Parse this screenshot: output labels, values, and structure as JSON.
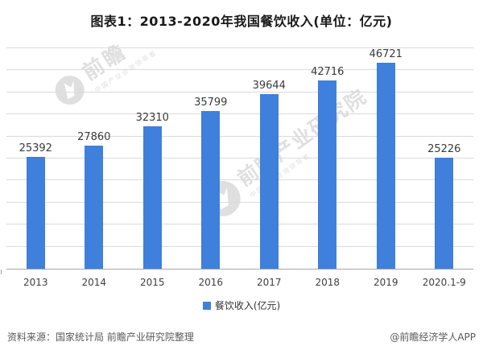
{
  "page": {
    "title": "图表1：2013-2020年我国餐饮收入(单位：亿元)"
  },
  "chart_data": {
    "type": "bar",
    "title": "图表1：2013-2020年我国餐饮收入(单位：亿元)",
    "categories": [
      "2013",
      "2014",
      "2015",
      "2016",
      "2017",
      "2018",
      "2019",
      "2020.1-9"
    ],
    "values": [
      25392,
      27860,
      32310,
      35799,
      39644,
      42716,
      46721,
      25226
    ],
    "series_name": "餐饮收入(亿元)",
    "unit": "亿元",
    "ylim": [
      0,
      50000
    ],
    "grid_step": 5000,
    "gridlines": "horizontal",
    "y_axis_labels_visible": false,
    "value_labels": true,
    "legend_position": "bottom"
  },
  "legend": {
    "items": [
      {
        "label": "餐饮收入(亿元)",
        "color": "#3E80DB"
      }
    ]
  },
  "watermarks": {
    "small": {
      "brand": "前瞻",
      "tagline": "中国产业咨询领导者"
    },
    "large": {
      "brand": "前瞻产业研究院",
      "tagline": "中国产业咨询领导者"
    }
  },
  "footer": {
    "source": "资料来源：国家统计局 前瞻产业研究院整理",
    "credit": "@前瞻经济学人APP"
  },
  "colors": {
    "bar": "#3E80DB",
    "grid": "#DBDBDB",
    "axis": "#A6A6A6",
    "value_label": "#3A3A3A",
    "category_label": "#404040",
    "title": "#1A1A1A",
    "footer_text": "#595959",
    "watermark": "#CBCBCB"
  }
}
